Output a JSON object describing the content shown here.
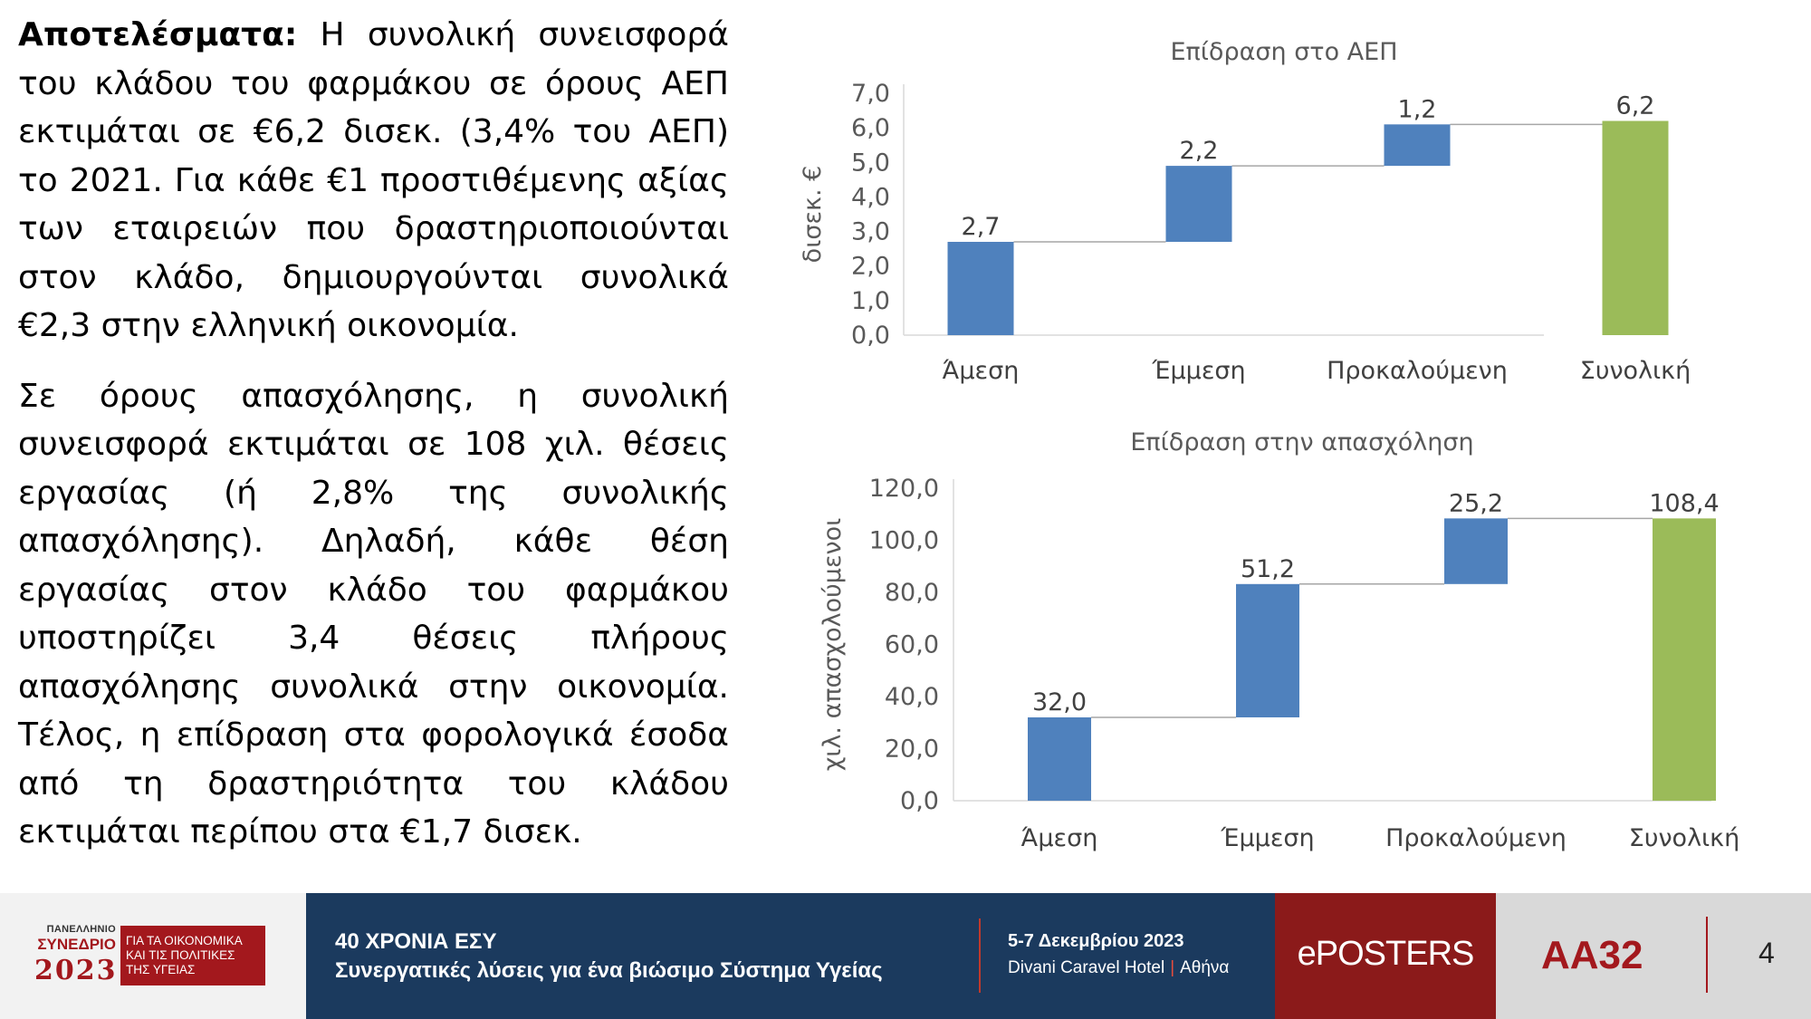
{
  "text": {
    "para1_lead": "Αποτελέσματα:",
    "para1_rest": " Η συνολική συνεισφορά του κλάδου του φαρμάκου σε όρους ΑΕΠ εκτιμάται σε €6,2 δισεκ. (3,4% του ΑΕΠ) το 2021. Για κάθε €1 προστιθέμενης αξίας των εταιρειών που δραστηριοποιούνται στον κλάδο, δημιουργούνται συνολικά €2,3 στην ελληνική οικονομία.",
    "para2": "Σε όρους απασχόλησης, η συνολική συνεισφορά εκτιμάται σε 108 χιλ. θέσεις εργασίας (ή 2,8% της συνολικής απασχόλησης). Δηλαδή, κάθε θέση εργασίας στον κλάδο του φαρμάκου υποστηρίζει 3,4 θέσεις πλήρους απασχόλησης συνολικά στην οικονομία. Τέλος, η επίδραση στα φορολογικά έσοδα από τη δραστηριότητα του κλάδου εκτιμάται περίπου στα €1,7 δισεκ."
  },
  "chart_data": [
    {
      "type": "bar",
      "subtype": "waterfall",
      "title": "Επίδραση στο ΑΕΠ",
      "ylabel": "δισεκ. €",
      "categories": [
        "Άμεση",
        "Έμμεση",
        "Προκαλούμενη",
        "Συνολική"
      ],
      "values": [
        2.7,
        2.2,
        1.2,
        6.2
      ],
      "data_labels": [
        "2,7",
        "2,2",
        "1,2",
        "6,2"
      ],
      "yticks": [
        "0,0",
        "1,0",
        "2,0",
        "3,0",
        "4,0",
        "5,0",
        "6,0",
        "7,0"
      ],
      "ylim": [
        0,
        7
      ],
      "grid": false,
      "colors": {
        "step": "#4f81bd",
        "total": "#9bbb59",
        "connector": "#a6a6a6"
      }
    },
    {
      "type": "bar",
      "subtype": "waterfall",
      "title": "Επίδραση στην απασχόληση",
      "ylabel": "χιλ. απασχολούμενοι",
      "categories": [
        "Άμεση",
        "Έμμεση",
        "Προκαλούμενη",
        "Συνολική"
      ],
      "values": [
        32.0,
        51.2,
        25.2,
        108.4
      ],
      "data_labels": [
        "32,0",
        "51,2",
        "25,2",
        "108,4"
      ],
      "yticks": [
        "0,0",
        "20,0",
        "40,0",
        "60,0",
        "80,0",
        "100,0",
        "120,0"
      ],
      "ylim": [
        0,
        120
      ],
      "grid": false,
      "colors": {
        "step": "#4f81bd",
        "total": "#9bbb59",
        "connector": "#a6a6a6"
      }
    }
  ],
  "footer": {
    "logo_small": "ΠΑΝΕΛΛΗΝΙΟ",
    "logo_mid": "ΣΥΝΕΔΡΙΟ",
    "logo_year": "2023",
    "logo_box": [
      "ΓΙΑ ΤΑ ΟΙΚΟΝΟΜΙΚΑ",
      "ΚΑΙ ΤΙΣ ΠΟΛΙΤΙΚΕΣ",
      "ΤΗΣ ΥΓΕΙΑΣ"
    ],
    "title1": "40 ΧΡΟΝΙΑ ΕΣΥ",
    "title2": "Συνεργατικές λύσεις για ένα βιώσιμο Σύστημα Υγείας",
    "date": "5-7 Δεκεμβρίου 2023",
    "venue_hotel": "Divani Caravel Hotel",
    "venue_city": "Αθήνα",
    "eposters": "ePOSTERS",
    "code": "AA32",
    "page": "4"
  }
}
